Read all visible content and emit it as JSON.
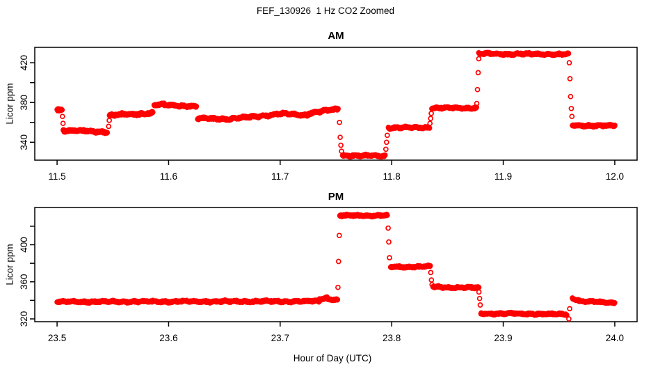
{
  "figure": {
    "title": "FEF_130926  1 Hz CO2 Zoomed",
    "xlabel": "Hour of Day (UTC)",
    "background": "#FFFFFF",
    "axis_color": "#000000",
    "point_color": "#FF0000"
  },
  "chart_data": [
    {
      "type": "scatter",
      "title": "AM",
      "ylabel": "Licor ppm",
      "marker": "open-circle",
      "sample_rate": "1 Hz",
      "color": "#FF0000",
      "xlim": [
        11.48,
        12.02
      ],
      "ylim": [
        322,
        435.5
      ],
      "grid": false,
      "xticks": [
        {
          "v": 11.5,
          "label": "11.5"
        },
        {
          "v": 11.6,
          "label": "11.6"
        },
        {
          "v": 11.7,
          "label": "11.7"
        },
        {
          "v": 11.8,
          "label": "11.8"
        },
        {
          "v": 11.9,
          "label": "11.9"
        },
        {
          "v": 12.0,
          "label": "12.0"
        }
      ],
      "yticks": [
        {
          "v": 340,
          "label": "340"
        },
        {
          "v": 360,
          "label": ""
        },
        {
          "v": 380,
          "label": "380"
        },
        {
          "v": 400,
          "label": ""
        },
        {
          "v": 420,
          "label": "420"
        }
      ],
      "segments": [
        {
          "x0": 11.5,
          "x1": 11.5045,
          "y0": 373.0,
          "y1": 372.5,
          "noise": 1.6
        },
        {
          "x0": 11.5055,
          "x1": 11.545,
          "y0": 352.0,
          "y1": 350.5,
          "noise": 1.2
        },
        {
          "x0": 11.547,
          "x1": 11.586,
          "y0": 367.0,
          "y1": 369.5,
          "noise": 1.3
        },
        {
          "x0": 11.587,
          "x1": 11.596,
          "y0": 377.5,
          "y1": 378.0,
          "noise": 1.1
        },
        {
          "x0": 11.596,
          "x1": 11.625,
          "y0": 377.5,
          "y1": 376.0,
          "noise": 1.1
        },
        {
          "x0": 11.626,
          "x1": 11.655,
          "y0": 364.0,
          "y1": 363.5,
          "noise": 1.2
        },
        {
          "x0": 11.655,
          "x1": 11.7,
          "y0": 363.5,
          "y1": 368.5,
          "noise": 1.2
        },
        {
          "x0": 11.7,
          "x1": 11.725,
          "y0": 368.5,
          "y1": 367.5,
          "noise": 1.2
        },
        {
          "x0": 11.725,
          "x1": 11.752,
          "y0": 369.0,
          "y1": 373.5,
          "noise": 1.2
        },
        {
          "x0": 11.756,
          "x1": 11.794,
          "y0": 326.5,
          "y1": 326.5,
          "noise": 1.0
        },
        {
          "x0": 11.797,
          "x1": 11.834,
          "y0": 354.5,
          "y1": 355.0,
          "noise": 1.0
        },
        {
          "x0": 11.836,
          "x1": 11.876,
          "y0": 374.5,
          "y1": 374.5,
          "noise": 1.0
        },
        {
          "x0": 11.878,
          "x1": 11.9585,
          "y0": 429.0,
          "y1": 428.5,
          "noise": 1.0
        },
        {
          "x0": 11.962,
          "x1": 12.0,
          "y0": 357.0,
          "y1": 356.5,
          "noise": 1.0
        }
      ],
      "transition_points": [
        {
          "x": 11.5048,
          "y": 366
        },
        {
          "x": 11.5053,
          "y": 359
        },
        {
          "x": 11.5462,
          "y": 356
        },
        {
          "x": 11.5468,
          "y": 362
        },
        {
          "x": 11.7532,
          "y": 360
        },
        {
          "x": 11.7538,
          "y": 345
        },
        {
          "x": 11.7544,
          "y": 337
        },
        {
          "x": 11.755,
          "y": 331
        },
        {
          "x": 11.7948,
          "y": 333
        },
        {
          "x": 11.7954,
          "y": 340
        },
        {
          "x": 11.796,
          "y": 347
        },
        {
          "x": 11.8343,
          "y": 359
        },
        {
          "x": 11.8349,
          "y": 364
        },
        {
          "x": 11.8355,
          "y": 369
        },
        {
          "x": 11.8763,
          "y": 379
        },
        {
          "x": 11.8769,
          "y": 393
        },
        {
          "x": 11.8775,
          "y": 410
        },
        {
          "x": 11.8781,
          "y": 424
        },
        {
          "x": 11.9592,
          "y": 420
        },
        {
          "x": 11.9598,
          "y": 404
        },
        {
          "x": 11.9604,
          "y": 386
        },
        {
          "x": 11.961,
          "y": 374
        },
        {
          "x": 11.9616,
          "y": 366
        }
      ]
    },
    {
      "type": "scatter",
      "title": "PM",
      "ylabel": "Licor ppm",
      "marker": "open-circle",
      "sample_rate": "1 Hz",
      "color": "#FF0000",
      "xlim": [
        23.48,
        24.02
      ],
      "ylim": [
        317,
        440.2
      ],
      "grid": false,
      "xticks": [
        {
          "v": 23.5,
          "label": "23.5"
        },
        {
          "v": 23.6,
          "label": "23.6"
        },
        {
          "v": 23.7,
          "label": "23.7"
        },
        {
          "v": 23.8,
          "label": "23.8"
        },
        {
          "v": 23.9,
          "label": "23.9"
        },
        {
          "v": 24.0,
          "label": "24.0"
        }
      ],
      "yticks": [
        {
          "v": 320,
          "label": "320"
        },
        {
          "v": 340,
          "label": ""
        },
        {
          "v": 360,
          "label": "360"
        },
        {
          "v": 380,
          "label": ""
        },
        {
          "v": 400,
          "label": "400"
        },
        {
          "v": 420,
          "label": ""
        }
      ],
      "segments": [
        {
          "x0": 23.5,
          "x1": 23.735,
          "y0": 338.5,
          "y1": 339.0,
          "noise": 1.1
        },
        {
          "x0": 23.735,
          "x1": 23.742,
          "y0": 341.0,
          "y1": 343.0,
          "noise": 1.0
        },
        {
          "x0": 23.742,
          "x1": 23.7515,
          "y0": 341.5,
          "y1": 340.5,
          "noise": 1.0
        },
        {
          "x0": 23.7535,
          "x1": 23.796,
          "y0": 431.5,
          "y1": 431.5,
          "noise": 1.0
        },
        {
          "x0": 23.799,
          "x1": 23.8345,
          "y0": 376.0,
          "y1": 376.5,
          "noise": 1.0
        },
        {
          "x0": 23.837,
          "x1": 23.878,
          "y0": 354.5,
          "y1": 353.5,
          "noise": 1.0
        },
        {
          "x0": 23.88,
          "x1": 23.957,
          "y0": 326.0,
          "y1": 325.0,
          "noise": 1.0
        },
        {
          "x0": 23.962,
          "x1": 23.968,
          "y0": 342.0,
          "y1": 340.0,
          "noise": 0.9
        },
        {
          "x0": 23.968,
          "x1": 24.0,
          "y0": 339.0,
          "y1": 337.5,
          "noise": 0.9
        }
      ],
      "transition_points": [
        {
          "x": 23.7518,
          "y": 354
        },
        {
          "x": 23.7524,
          "y": 382
        },
        {
          "x": 23.753,
          "y": 410
        },
        {
          "x": 23.7968,
          "y": 418
        },
        {
          "x": 23.7974,
          "y": 403
        },
        {
          "x": 23.798,
          "y": 386
        },
        {
          "x": 23.835,
          "y": 370
        },
        {
          "x": 23.8356,
          "y": 362
        },
        {
          "x": 23.8362,
          "y": 357
        },
        {
          "x": 23.8782,
          "y": 349
        },
        {
          "x": 23.8788,
          "y": 342
        },
        {
          "x": 23.8794,
          "y": 335
        },
        {
          "x": 23.9588,
          "y": 320
        },
        {
          "x": 23.9596,
          "y": 331
        }
      ]
    }
  ]
}
